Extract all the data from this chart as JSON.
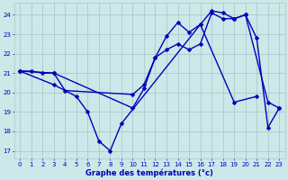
{
  "xlabel": "Graphe des températures (°c)",
  "bg_color": "#cce8e8",
  "grid_color": "#aacccc",
  "line_color": "#0000bb",
  "xlim": [
    -0.5,
    23.5
  ],
  "ylim": [
    16.6,
    24.6
  ],
  "yticks": [
    17,
    18,
    19,
    20,
    21,
    22,
    23,
    24
  ],
  "xticks": [
    0,
    1,
    2,
    3,
    4,
    5,
    6,
    7,
    8,
    9,
    10,
    11,
    12,
    13,
    14,
    15,
    16,
    17,
    18,
    19,
    20,
    21,
    22,
    23
  ],
  "series1_x": [
    0,
    1,
    2,
    3,
    4,
    10,
    11,
    12,
    13,
    14,
    15,
    16,
    17,
    18,
    19,
    20,
    22,
    23
  ],
  "series1_y": [
    21.1,
    21.1,
    21.0,
    21.0,
    20.1,
    19.9,
    20.4,
    21.8,
    22.2,
    22.5,
    22.2,
    22.5,
    24.1,
    23.8,
    23.8,
    24.0,
    19.5,
    19.2
  ],
  "series2_x": [
    0,
    3,
    10,
    11,
    12,
    13,
    14,
    15,
    16,
    17,
    18,
    19,
    20,
    21,
    22,
    23
  ],
  "series2_y": [
    21.1,
    21.0,
    19.2,
    20.2,
    21.8,
    22.9,
    23.6,
    23.1,
    23.5,
    24.2,
    24.1,
    23.8,
    24.0,
    22.8,
    18.2,
    19.2
  ],
  "series3_x": [
    0,
    3,
    5,
    6,
    7,
    8,
    9,
    16,
    19,
    21
  ],
  "series3_y": [
    21.1,
    20.4,
    19.8,
    19.0,
    17.5,
    17.0,
    18.4,
    23.5,
    19.5,
    19.8
  ],
  "marker": "D",
  "markersize": 2.5,
  "linewidth": 1.0
}
